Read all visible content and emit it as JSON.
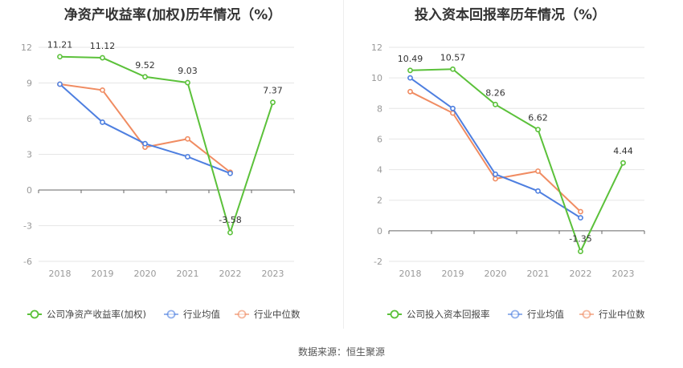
{
  "source_label": "数据来源：恒生聚源",
  "chart_data": [
    {
      "type": "line",
      "title": "净资产收益率(加权)历年情况（%）",
      "categories": [
        "2018",
        "2019",
        "2020",
        "2021",
        "2022",
        "2023"
      ],
      "ylim": [
        -6,
        12
      ],
      "yticks": [
        12,
        9,
        6,
        3,
        0,
        -3,
        -6
      ],
      "series": [
        {
          "name": "公司净资产收益率(加权)",
          "color": "#5bc13a",
          "values": [
            11.21,
            11.12,
            9.52,
            9.03,
            -3.58,
            7.37
          ],
          "labels": [
            "11.21",
            "11.12",
            "9.52",
            "9.03",
            "-3.58",
            "7.37"
          ]
        },
        {
          "name": "行业均值",
          "color": "#4e7fe0",
          "values": [
            8.9,
            5.7,
            3.9,
            2.8,
            1.4,
            null
          ]
        },
        {
          "name": "行业中位数",
          "color": "#f08c62",
          "values": [
            8.9,
            8.4,
            3.6,
            4.3,
            1.5,
            null
          ]
        }
      ]
    },
    {
      "type": "line",
      "title": "投入资本回报率历年情况（%）",
      "categories": [
        "2018",
        "2019",
        "2020",
        "2021",
        "2022",
        "2023"
      ],
      "ylim": [
        -2,
        12
      ],
      "yticks": [
        12,
        10,
        8,
        6,
        4,
        2,
        0,
        -2
      ],
      "series": [
        {
          "name": "公司投入资本回报率",
          "color": "#5bc13a",
          "values": [
            10.49,
            10.57,
            8.26,
            6.62,
            -1.35,
            4.44
          ],
          "labels": [
            "10.49",
            "10.57",
            "8.26",
            "6.62",
            "-1.35",
            "4.44"
          ]
        },
        {
          "name": "行业均值",
          "color": "#4e7fe0",
          "values": [
            10.0,
            8.0,
            3.7,
            2.6,
            0.85,
            null
          ]
        },
        {
          "name": "行业中位数",
          "color": "#f08c62",
          "values": [
            9.1,
            7.7,
            3.4,
            3.9,
            1.25,
            null
          ]
        }
      ]
    }
  ]
}
